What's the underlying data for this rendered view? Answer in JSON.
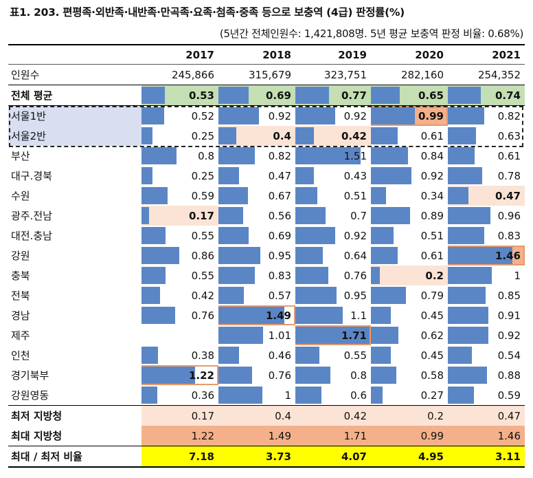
{
  "title": "표1. 203. 편평족·외반족·내반족·만곡족·요족·첨족·중족 등으로 보충역 (4급) 판정률(%)",
  "subtitle": "(5년간 전체인원수: 1,421,808명. 5년 평균 보충역 판정 비율: 0.68%)",
  "colors": {
    "bar": "#5b86c5",
    "min_highlight": "#fbe4d6",
    "max_highlight": "#f4b08a",
    "average_row": "#c4dfb4",
    "ratio_row": "#ffff00",
    "seoul_label": "#d9dff1"
  },
  "chart_data": {
    "type": "table",
    "years": [
      "2017",
      "2018",
      "2019",
      "2020",
      "2021"
    ],
    "population_label": "인원수",
    "population": [
      "245,866",
      "315,679",
      "323,751",
      "282,160",
      "254,352"
    ],
    "bar_scale_max": 1.71,
    "average": {
      "label": "전체 평균",
      "values": [
        "0.53",
        "0.69",
        "0.77",
        "0.65",
        "0.74"
      ]
    },
    "rows": [
      {
        "label": "서울1반",
        "values": [
          "0.52",
          "0.92",
          "0.92",
          "0.99",
          "0.82"
        ]
      },
      {
        "label": "서울2반",
        "values": [
          "0.25",
          "0.4",
          "0.42",
          "0.61",
          "0.63"
        ]
      },
      {
        "label": "부산",
        "values": [
          "0.8",
          "0.82",
          "1.51",
          "0.84",
          "0.61"
        ]
      },
      {
        "label": "대구.경북",
        "values": [
          "0.25",
          "0.47",
          "0.43",
          "0.92",
          "0.78"
        ]
      },
      {
        "label": "수원",
        "values": [
          "0.59",
          "0.67",
          "0.51",
          "0.34",
          "0.47"
        ]
      },
      {
        "label": "광주.전남",
        "values": [
          "0.17",
          "0.56",
          "0.7",
          "0.89",
          "0.96"
        ]
      },
      {
        "label": "대전.충남",
        "values": [
          "0.55",
          "0.69",
          "0.92",
          "0.51",
          "0.83"
        ]
      },
      {
        "label": "강원",
        "values": [
          "0.86",
          "0.95",
          "0.64",
          "0.61",
          "1.46"
        ]
      },
      {
        "label": "충북",
        "values": [
          "0.55",
          "0.83",
          "0.76",
          "0.2",
          "1"
        ]
      },
      {
        "label": "전북",
        "values": [
          "0.42",
          "0.57",
          "0.95",
          "0.79",
          "0.85"
        ]
      },
      {
        "label": "경남",
        "values": [
          "0.76",
          "1.49",
          "1.1",
          "0.45",
          "0.91"
        ]
      },
      {
        "label": "제주",
        "values": [
          "",
          "1.01",
          "1.71",
          "0.62",
          "0.92"
        ]
      },
      {
        "label": "인천",
        "values": [
          "0.38",
          "0.46",
          "0.55",
          "0.45",
          "0.54"
        ]
      },
      {
        "label": "경기북부",
        "values": [
          "1.22",
          "0.76",
          "0.8",
          "0.58",
          "0.88"
        ]
      },
      {
        "label": "강원영동",
        "values": [
          "0.36",
          "1",
          "0.6",
          "0.27",
          "0.59"
        ]
      }
    ],
    "min_row": {
      "label": "최저 지방청",
      "values": [
        "0.17",
        "0.4",
        "0.42",
        "0.2",
        "0.47"
      ]
    },
    "max_row": {
      "label": "최대 지방청",
      "values": [
        "1.22",
        "1.49",
        "1.71",
        "0.99",
        "1.46"
      ]
    },
    "ratio_row": {
      "label": "최대 / 최저 비율",
      "values": [
        "7.18",
        "3.73",
        "4.07",
        "4.95",
        "3.11"
      ]
    }
  }
}
